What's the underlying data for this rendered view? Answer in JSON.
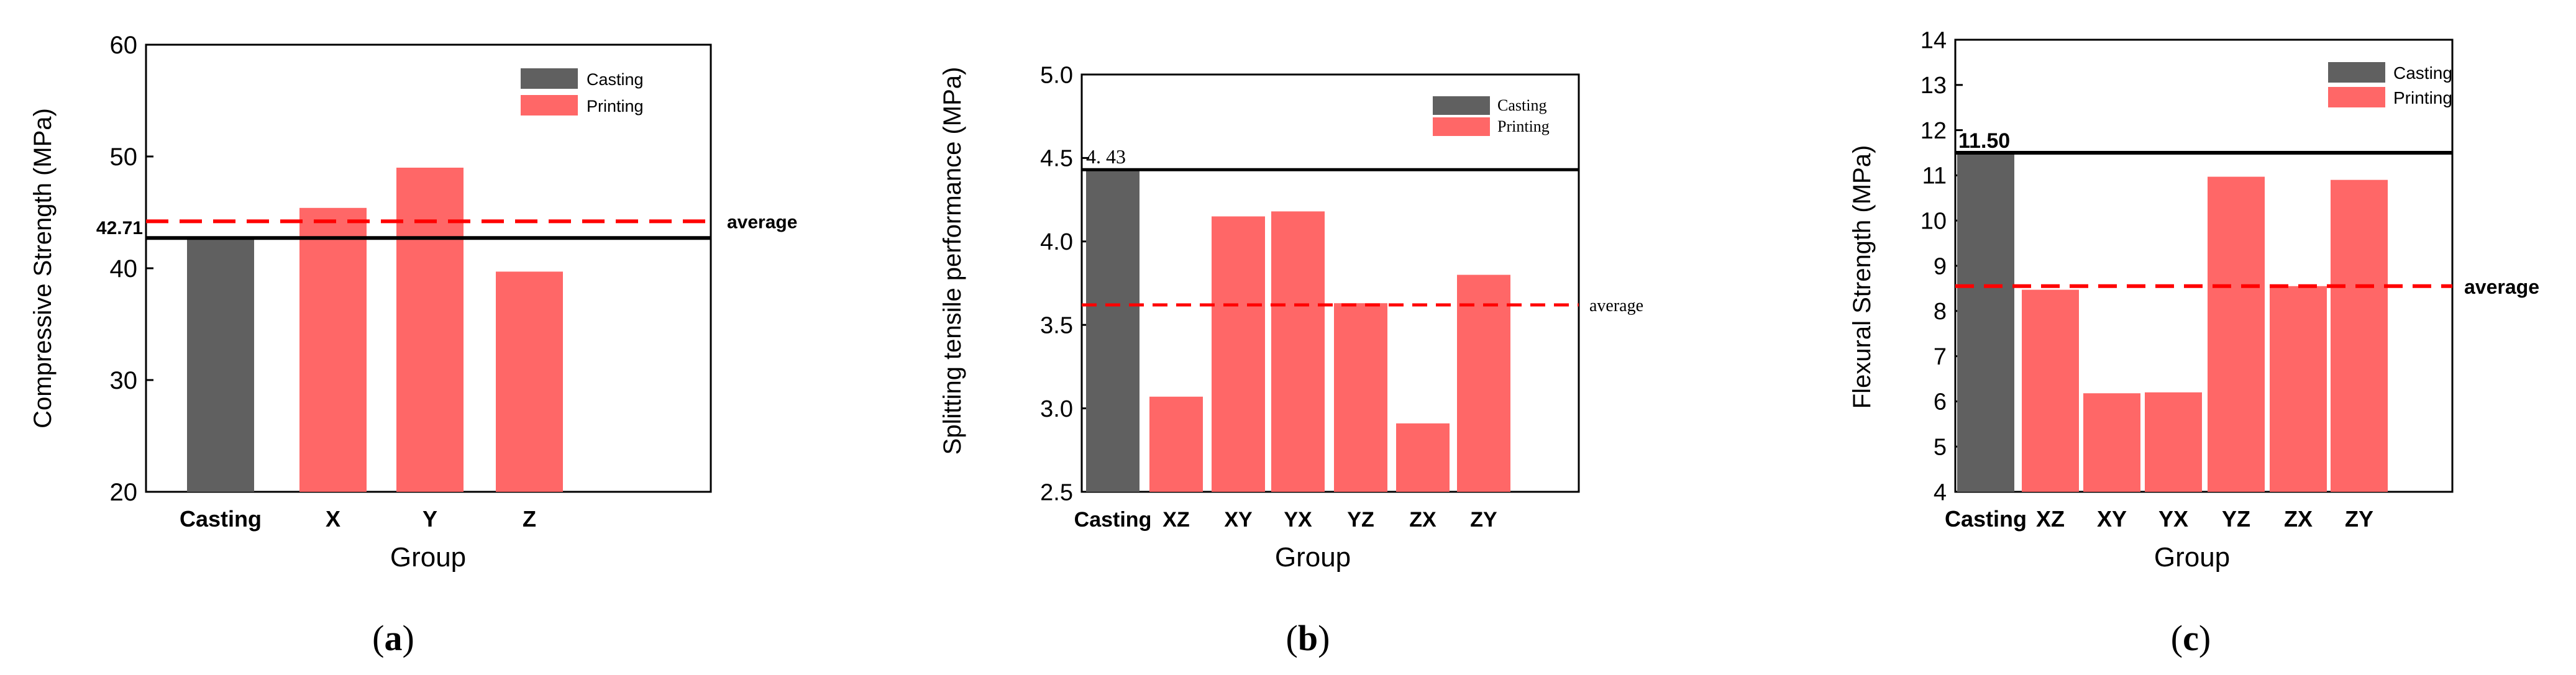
{
  "chart_data": [
    {
      "type": "bar",
      "panel_label": "(a)",
      "panel_letter": "a",
      "title": "",
      "xlabel": "Group",
      "ylabel": "Compressive Strength (MPa)",
      "ylim": [
        20,
        60
      ],
      "yticks": [
        "20",
        "30",
        "40",
        "50",
        "60"
      ],
      "categories": [
        "Casting",
        "X",
        "Y",
        "Z"
      ],
      "values": [
        42.71,
        45.4,
        49.0,
        39.7
      ],
      "series_names": [
        "Casting",
        "Printing",
        "Printing",
        "Printing"
      ],
      "legend": [
        {
          "label": "Casting",
          "color": "#606060"
        },
        {
          "label": "Printing",
          "color": "#ff6767"
        }
      ],
      "legend_position": "top-right",
      "reference_line": {
        "value": 42.71,
        "label": "42.71",
        "style": "solid",
        "color": "#000000"
      },
      "average_line": {
        "value": 44.2,
        "label": "average",
        "style": "dashed",
        "color": "#ff0000"
      }
    },
    {
      "type": "bar",
      "panel_label": "(b)",
      "panel_letter": "b",
      "title": "",
      "xlabel": "Group",
      "ylabel": "Splitting tensile performance (MPa)",
      "ylim": [
        2.5,
        5.0
      ],
      "yticks": [
        "2.5",
        "3.0",
        "3.5",
        "4.0",
        "4.5",
        "5.0"
      ],
      "categories": [
        "Casting",
        "XZ",
        "XY",
        "YX",
        "YZ",
        "ZX",
        "ZY"
      ],
      "values": [
        4.43,
        3.07,
        4.15,
        4.18,
        3.63,
        2.91,
        3.8
      ],
      "series_names": [
        "Casting",
        "Printing",
        "Printing",
        "Printing",
        "Printing",
        "Printing",
        "Printing"
      ],
      "legend": [
        {
          "label": "Casting",
          "color": "#606060"
        },
        {
          "label": "Printing",
          "color": "#ff6767"
        }
      ],
      "legend_position": "top-right",
      "reference_line": {
        "value": 4.43,
        "label": "4. 43",
        "style": "solid",
        "color": "#000000"
      },
      "average_line": {
        "value": 3.62,
        "label": "average",
        "style": "dashed",
        "color": "#ff0000"
      }
    },
    {
      "type": "bar",
      "panel_label": "(c)",
      "panel_letter": "c",
      "title": "",
      "xlabel": "Group",
      "ylabel": "Flexural Strength (MPa)",
      "ylim": [
        4,
        14
      ],
      "yticks": [
        "4",
        "5",
        "6",
        "7",
        "8",
        "9",
        "10",
        "11",
        "12",
        "13",
        "14"
      ],
      "categories": [
        "Casting",
        "XZ",
        "XY",
        "YX",
        "YZ",
        "ZX",
        "ZY"
      ],
      "values": [
        11.5,
        8.47,
        6.18,
        6.2,
        10.97,
        8.55,
        10.9
      ],
      "series_names": [
        "Casting",
        "Printing",
        "Printing",
        "Printing",
        "Printing",
        "Printing",
        "Printing"
      ],
      "legend": [
        {
          "label": "Casting",
          "color": "#606060"
        },
        {
          "label": "Printing",
          "color": "#ff6767"
        }
      ],
      "legend_position": "top-right",
      "reference_line": {
        "value": 11.5,
        "label": "11.50",
        "style": "solid",
        "color": "#000000"
      },
      "average_line": {
        "value": 8.55,
        "label": "average",
        "style": "dashed",
        "color": "#ff0000"
      }
    }
  ]
}
